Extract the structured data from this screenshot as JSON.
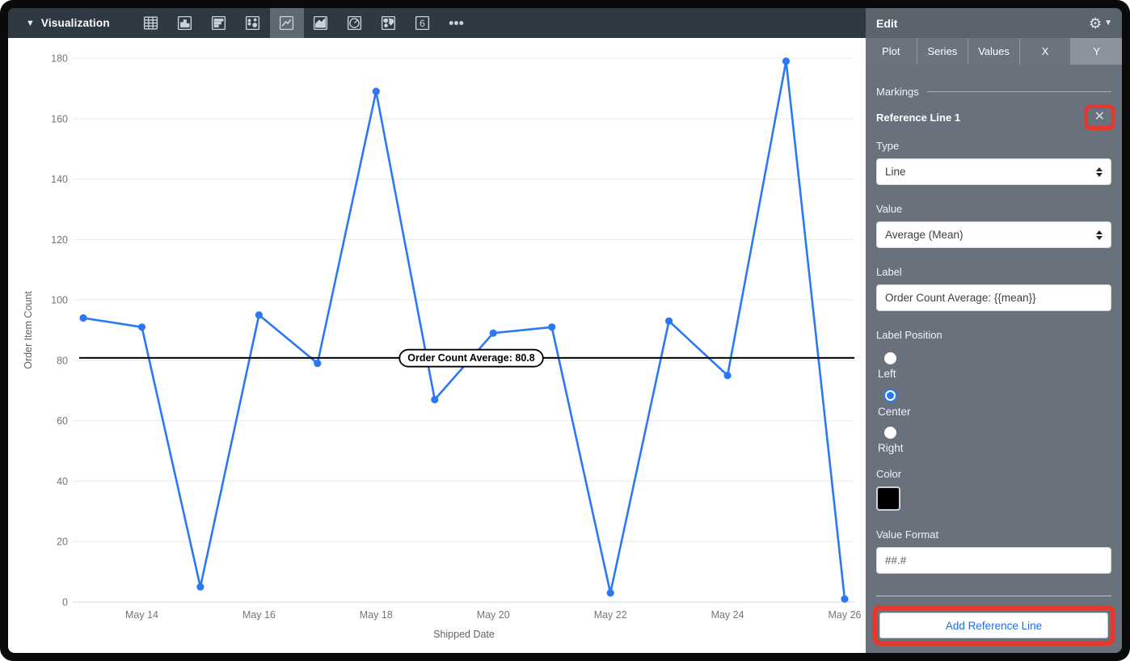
{
  "toolbar": {
    "title": "Visualization",
    "icons": [
      {
        "name": "table",
        "selected": false
      },
      {
        "name": "bar-chart",
        "selected": false
      },
      {
        "name": "row-chart",
        "selected": false
      },
      {
        "name": "scatter-plot",
        "selected": false
      },
      {
        "name": "line-chart",
        "selected": true
      },
      {
        "name": "area-chart",
        "selected": false
      },
      {
        "name": "pie-chart",
        "selected": false
      },
      {
        "name": "map",
        "selected": false
      },
      {
        "name": "single-value",
        "selected": false,
        "glyph": "6"
      },
      {
        "name": "more-options",
        "selected": false
      }
    ]
  },
  "sidebar": {
    "header_title": "Edit",
    "tabs": [
      {
        "label": "Plot",
        "selected": false
      },
      {
        "label": "Series",
        "selected": false
      },
      {
        "label": "Values",
        "selected": false
      },
      {
        "label": "X",
        "selected": false
      },
      {
        "label": "Y",
        "selected": true
      }
    ],
    "markings": {
      "section_label": "Markings",
      "reference_line": {
        "title": "Reference Line 1",
        "close_glyph": "✕",
        "type_label": "Type",
        "type_value": "Line",
        "value_label": "Value",
        "value_value": "Average (Mean)",
        "label_label": "Label",
        "label_value": "Order Count Average: {{mean}}",
        "label_position_label": "Label Position",
        "label_position_options": [
          {
            "label": "Left",
            "selected": false
          },
          {
            "label": "Center",
            "selected": true
          },
          {
            "label": "Right",
            "selected": false
          }
        ],
        "color_label": "Color",
        "color_value": "#000000",
        "value_format_label": "Value Format",
        "value_format_value": "##.#"
      },
      "add_button_label": "Add Reference Line"
    }
  },
  "annotations": {
    "highlight_color": "#e5392d",
    "targets": [
      "close-reference-line-button",
      "add-reference-line-button"
    ]
  },
  "chart_data": {
    "type": "line",
    "categories": [
      "May 13",
      "May 14",
      "May 15",
      "May 16",
      "May 17",
      "May 18",
      "May 19",
      "May 20",
      "May 21",
      "May 22",
      "May 23",
      "May 24",
      "May 25",
      "May 26"
    ],
    "values": [
      94,
      91,
      5,
      95,
      79,
      169,
      67,
      89,
      91,
      3,
      93,
      75,
      179,
      1
    ],
    "x_tick_labels": [
      "May 14",
      "May 16",
      "May 18",
      "May 20",
      "May 22",
      "May 24",
      "May 26"
    ],
    "y_ticks": [
      0,
      20,
      40,
      60,
      80,
      100,
      120,
      140,
      160,
      180
    ],
    "ylim": [
      0,
      180
    ],
    "xlabel": "Shipped Date",
    "ylabel": "Order Item Count",
    "grid": true,
    "legend": "none",
    "line_color": "#2b79f2",
    "tick_color": "#757575",
    "axis_title_color": "#5f6368",
    "grid_color": "#ececec",
    "zero_axis_color": "#dde3f3",
    "reference_line": {
      "value": 80.8,
      "label": "Order Count Average: 80.8",
      "color": "#000000",
      "label_position": "Center"
    }
  }
}
